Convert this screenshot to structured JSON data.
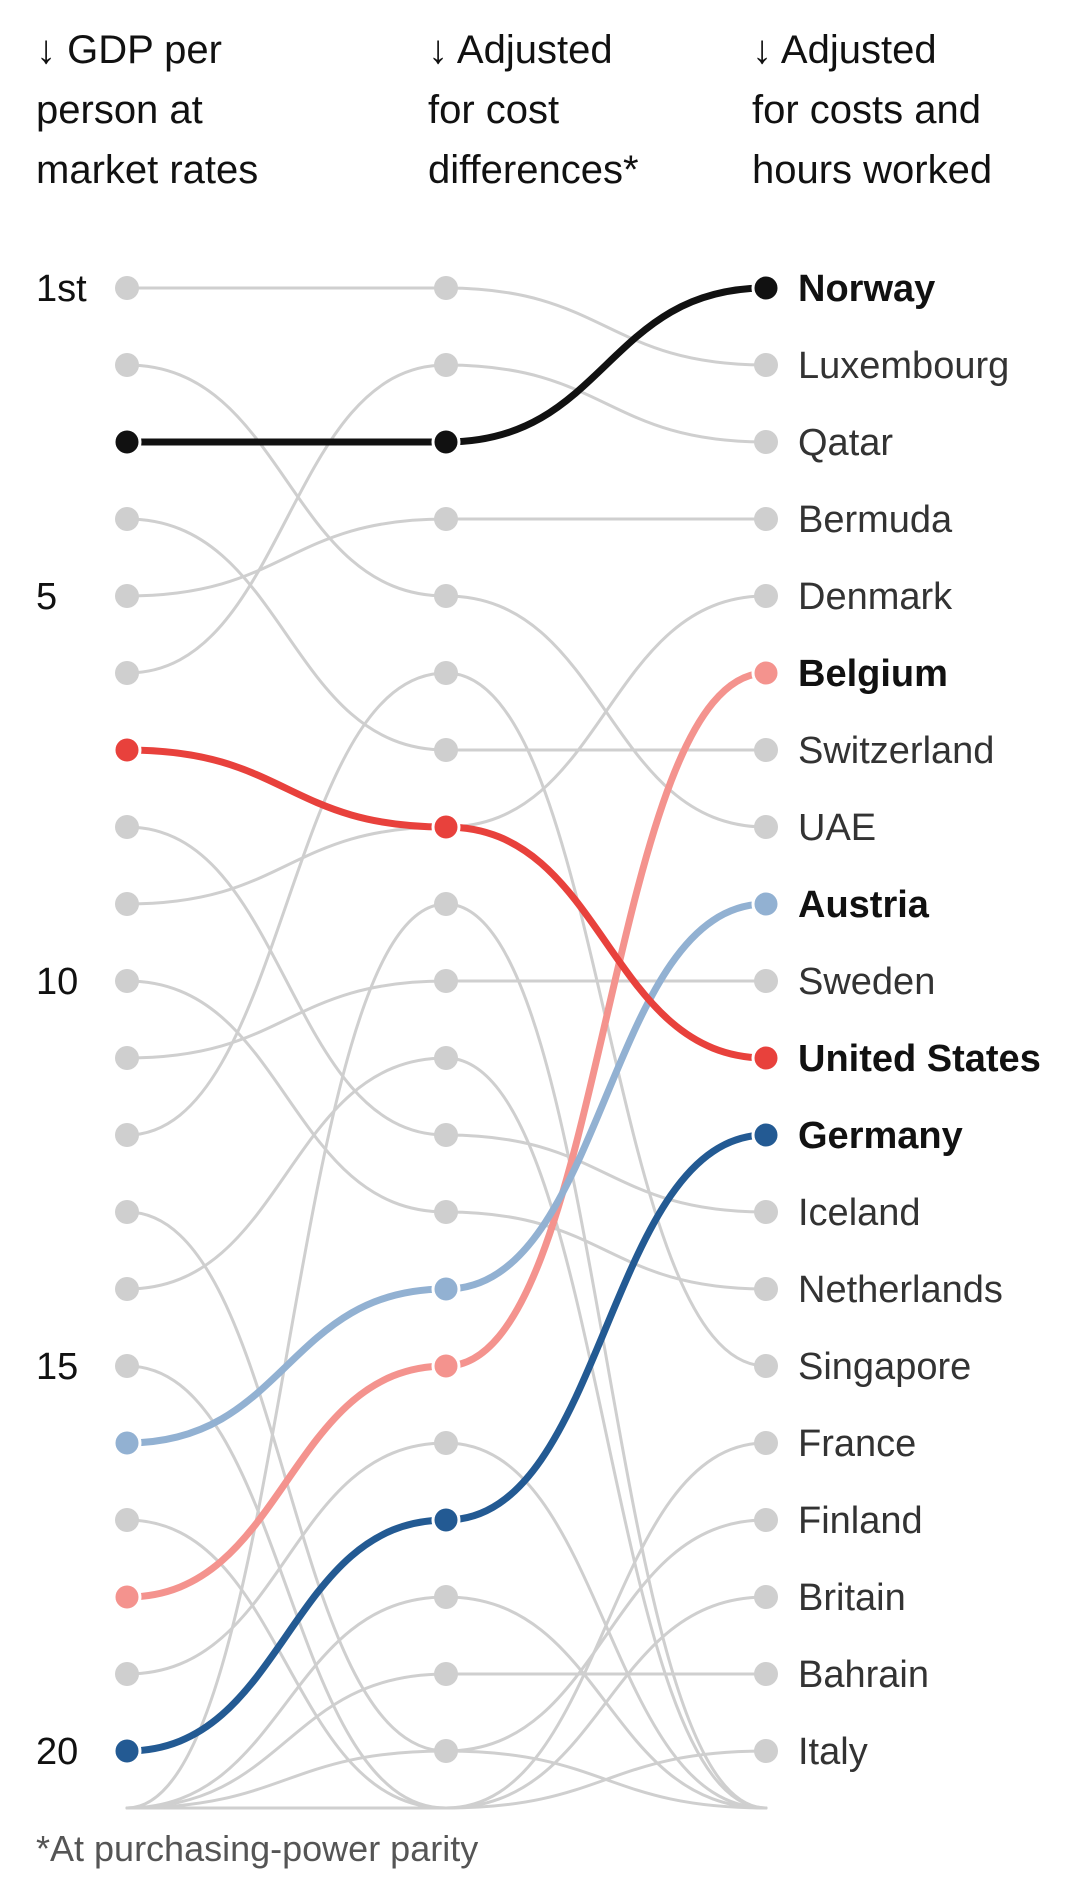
{
  "headers": {
    "col1": "↓ GDP per\nperson at\nmarket rates",
    "col2": "↓ Adjusted\nfor cost\ndifferences*",
    "col3": "↓ Adjusted\nfor costs and\nhours worked"
  },
  "footnote": "*At purchasing-power parity",
  "colors": {
    "grey_line": "#cfcfcf",
    "grey_dot": "#cfcfcf",
    "norway": "#111111",
    "united_states": "#e8413c",
    "belgium": "#f4938e",
    "austria": "#92b1d2",
    "germany": "#235a93"
  },
  "chart_data": {
    "type": "bump",
    "rank_ticks": [
      {
        "rank": 1,
        "label": "1st"
      },
      {
        "rank": 5,
        "label": "5"
      },
      {
        "rank": 10,
        "label": "10"
      },
      {
        "rank": 15,
        "label": "15"
      },
      {
        "rank": 20,
        "label": "20"
      }
    ],
    "series": [
      {
        "name": "Norway",
        "ranks": [
          3,
          3,
          1
        ],
        "highlight": true,
        "color": "#111111"
      },
      {
        "name": "Luxembourg",
        "ranks": [
          1,
          1,
          2
        ],
        "highlight": false
      },
      {
        "name": "Qatar",
        "ranks": [
          6,
          2,
          3
        ],
        "highlight": false
      },
      {
        "name": "Bermuda",
        "ranks": [
          5,
          4,
          4
        ],
        "highlight": false
      },
      {
        "name": "Denmark",
        "ranks": [
          9,
          8,
          5
        ],
        "highlight": false
      },
      {
        "name": "Belgium",
        "ranks": [
          18,
          15,
          6
        ],
        "highlight": true,
        "color": "#f4938e"
      },
      {
        "name": "Switzerland",
        "ranks": [
          4,
          7,
          7
        ],
        "highlight": false
      },
      {
        "name": "UAE",
        "ranks": [
          2,
          5,
          8
        ],
        "highlight": false
      },
      {
        "name": "Austria",
        "ranks": [
          16,
          14,
          9
        ],
        "highlight": true,
        "color": "#92b1d2"
      },
      {
        "name": "Sweden",
        "ranks": [
          11,
          10,
          10
        ],
        "highlight": false
      },
      {
        "name": "United States",
        "ranks": [
          7,
          8,
          11
        ],
        "highlight": true,
        "color": "#e8413c"
      },
      {
        "name": "Germany",
        "ranks": [
          20,
          17,
          12
        ],
        "highlight": true,
        "color": "#235a93"
      },
      {
        "name": "Iceland",
        "ranks": [
          8,
          12,
          13
        ],
        "highlight": false
      },
      {
        "name": "Netherlands",
        "ranks": [
          10,
          13,
          14
        ],
        "highlight": false
      },
      {
        "name": "Singapore",
        "ranks": [
          12,
          6,
          15
        ],
        "highlight": false
      },
      {
        "name": "France",
        "ranks": [
          17,
          21,
          16
        ],
        "highlight": false
      },
      {
        "name": "Finland",
        "ranks": [
          13,
          20,
          17
        ],
        "highlight": false
      },
      {
        "name": "Britain",
        "ranks": [
          15,
          21,
          18
        ],
        "highlight": false
      },
      {
        "name": "Bahrain",
        "ranks": [
          21,
          19,
          19
        ],
        "highlight": false
      },
      {
        "name": "Italy",
        "ranks": [
          21,
          21,
          20
        ],
        "highlight": false
      }
    ],
    "extra_lines": [
      {
        "ranks": [
          14,
          11,
          21
        ]
      },
      {
        "ranks": [
          19,
          16,
          21
        ]
      },
      {
        "ranks": [
          21,
          9,
          21
        ]
      },
      {
        "ranks": [
          21,
          18,
          21
        ]
      },
      {
        "ranks": [
          21,
          20,
          21
        ]
      }
    ]
  }
}
